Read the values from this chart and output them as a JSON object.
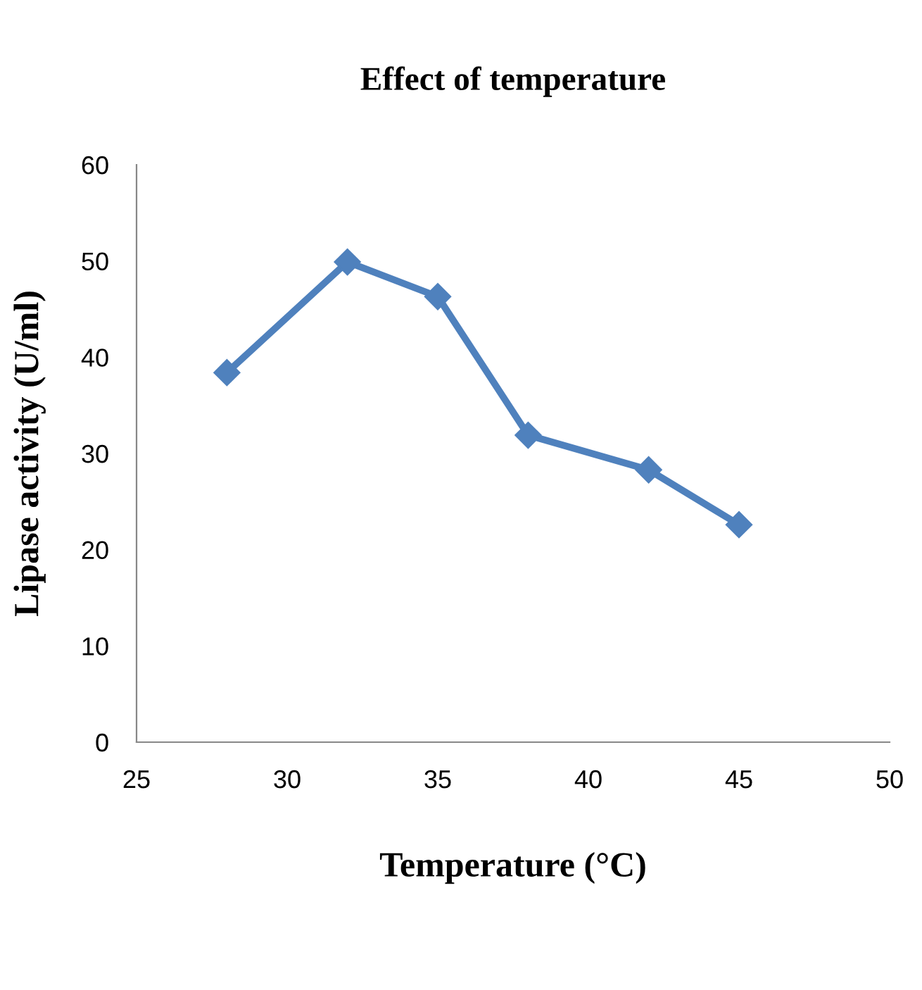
{
  "chart_data": {
    "type": "line",
    "title": "Effect of temperature",
    "xlabel": "Temperature (°C)",
    "ylabel": "Lipase activity (U/ml)",
    "x": [
      28,
      32,
      35,
      38,
      42,
      45
    ],
    "series": [
      {
        "color": "#4f81bd",
        "values": [
          38.4,
          49.9,
          46.3,
          31.9,
          28.3,
          22.6
        ]
      }
    ],
    "xlim": [
      25,
      50
    ],
    "xticks": [
      25,
      30,
      35,
      40,
      45,
      50
    ],
    "ylim": [
      0,
      60
    ],
    "yticks": [
      0,
      10,
      20,
      30,
      40,
      50,
      60
    ],
    "marker": "diamond",
    "line_style": "solid",
    "grid": false,
    "legend": false
  }
}
